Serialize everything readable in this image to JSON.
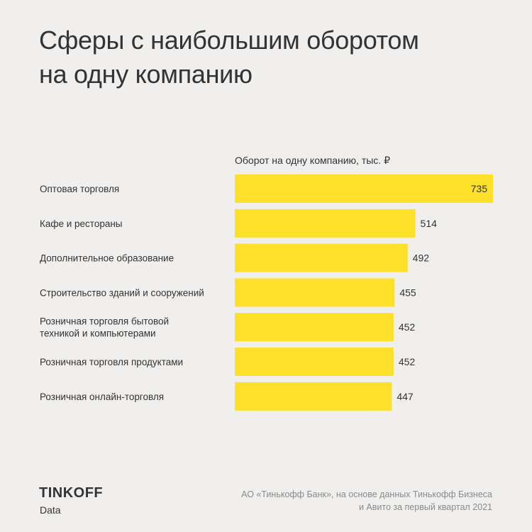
{
  "title": {
    "line1": "Сферы с наибольшим оборотом",
    "line2": "на одну компанию"
  },
  "chart_data": {
    "type": "bar",
    "orientation": "horizontal",
    "series_label": "Оборот на одну компанию, тыс. ₽",
    "categories": [
      [
        "Оптовая торговля"
      ],
      [
        "Кафе и рестораны"
      ],
      [
        "Дополнительное образование"
      ],
      [
        "Строительство зданий и сооружений"
      ],
      [
        "Розничная торговля бытовой",
        "техникой и компьютерами"
      ],
      [
        "Розничная торговля продуктами"
      ],
      [
        "Розничная онлайн-торговля"
      ]
    ],
    "values": [
      735,
      514,
      492,
      455,
      452,
      452,
      447
    ],
    "bar_color": "#fde02a",
    "xlim": [
      0,
      735
    ]
  },
  "footer": {
    "logo": "TINKOFF",
    "sub": "Data",
    "source_line1": "АО «Тинькофф Банк», на основе данных Тинькофф Бизнеса",
    "source_line2": "и Авито за первый квартал 2021"
  }
}
